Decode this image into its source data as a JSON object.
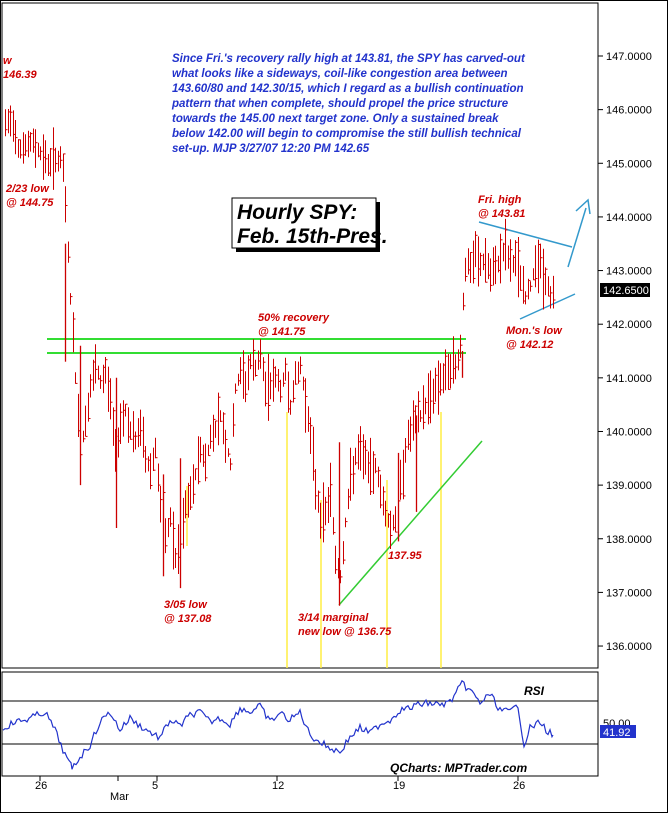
{
  "chart_data": {
    "type": "candlestick",
    "title": "Hourly SPY:",
    "subtitle": "Feb. 15th-Pres.",
    "ylim": [
      135.6,
      147.9
    ],
    "yticks": [
      "147.0000",
      "146.0000",
      "145.0000",
      "144.0000",
      "143.0000",
      "142.0000",
      "141.0000",
      "140.0000",
      "139.0000",
      "138.0000",
      "137.0000",
      "136.0000"
    ],
    "last_price": "142.6500",
    "x_ticks": [
      "26",
      "Mar",
      "5",
      "12",
      "19",
      "26"
    ],
    "commentary": [
      "Since Fri.'s recovery rally high at 143.81, the SPY has carved-out",
      "what looks like a sideways, coil-like congestion area between",
      "143.60/80 and 142.30/15, which I regard as a bullish continuation",
      "pattern that when complete, should propel the price structure",
      "towards the 145.00 next target zone. Only a sustained break",
      "below 142.00 will begin to compromise the still bullish technical",
      "set-up.  MJP  3/27/07 12:20 PM  142.65"
    ],
    "annotations": [
      {
        "id": "w146",
        "lines": [
          "w",
          "146.39"
        ]
      },
      {
        "id": "feb23",
        "lines": [
          "2/23 low",
          "@ 144.75"
        ]
      },
      {
        "id": "recovery",
        "lines": [
          "50% recovery",
          "@ 141.75"
        ]
      },
      {
        "id": "mar05",
        "lines": [
          "3/05 low",
          "@ 137.08"
        ]
      },
      {
        "id": "mar14",
        "lines": [
          "3/14  marginal",
          "new low @ 136.75"
        ]
      },
      {
        "id": "p13795",
        "lines": [
          "137.95"
        ]
      },
      {
        "id": "frihigh",
        "lines": [
          "Fri. high",
          "@ 143.81"
        ]
      },
      {
        "id": "monlow",
        "lines": [
          "Mon.'s low",
          "@ 142.12"
        ]
      }
    ],
    "resistance_levels": [
      141.5,
      141.75
    ],
    "rsi": {
      "label": "RSI",
      "yticks": [
        "50.00"
      ],
      "last_value": "41.92",
      "levels": [
        70,
        30
      ]
    },
    "credit": "QCharts: MPTrader.com",
    "colors": {
      "bar": "#cc0000",
      "notes": "#2233cc",
      "level_lines": "#33dd33",
      "trendline_up": "#33cc33",
      "triangle": "#3399cc",
      "yellow_markers": "#ffee44",
      "rsi_line": "#2233cc"
    }
  }
}
